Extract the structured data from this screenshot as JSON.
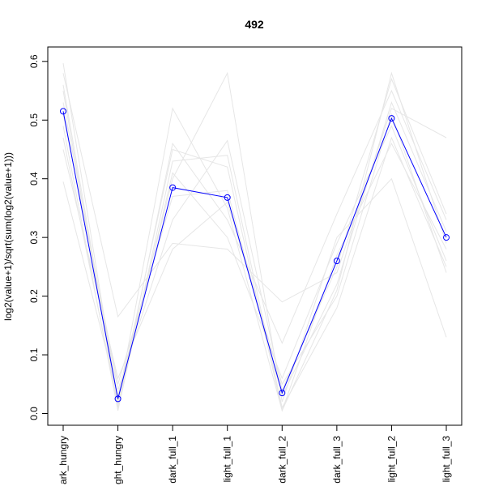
{
  "chart_data": {
    "type": "line",
    "title": "492",
    "xlabel": "",
    "ylabel": "log2(value+1)/sqrt(sum(log2(value+1)))",
    "categories": [
      "dark_hungry",
      "light_hungry",
      "dark_full_1",
      "light_full_1",
      "dark_full_2",
      "dark_full_3",
      "light_full_2",
      "light_full_3"
    ],
    "x_tick_labels_visible": [
      "ark_hungry",
      "ght_hungry",
      "dark_full_1",
      "light_full_1",
      "dark_full_2",
      "dark_full_3",
      "light_full_2",
      "light_full_3"
    ],
    "y_ticks": [
      "0.0",
      "0.1",
      "0.2",
      "0.3",
      "0.4",
      "0.5",
      "0.6"
    ],
    "ylim": [
      0.0,
      0.62
    ],
    "grid": false,
    "highlight_series": {
      "values": [
        0.515,
        0.025,
        0.385,
        0.368,
        0.035,
        0.26,
        0.503,
        0.3
      ],
      "color": "#0000ff"
    },
    "background_series": [
      {
        "values": [
          0.597,
          0.02,
          0.52,
          0.35,
          0.005,
          0.21,
          0.58,
          0.29
        ],
        "color": "#e6e6e6"
      },
      {
        "values": [
          0.58,
          0.165,
          0.29,
          0.28,
          0.19,
          0.24,
          0.52,
          0.47
        ],
        "color": "#e6e6e6"
      },
      {
        "values": [
          0.395,
          0.03,
          0.4,
          0.58,
          0.02,
          0.3,
          0.4,
          0.13
        ],
        "color": "#e6e6e6"
      },
      {
        "values": [
          0.55,
          0.01,
          0.46,
          0.33,
          0.12,
          0.34,
          0.55,
          0.33
        ],
        "color": "#e6e6e6"
      },
      {
        "values": [
          0.49,
          0.005,
          0.43,
          0.44,
          0.01,
          0.18,
          0.47,
          0.25
        ],
        "color": "#e6e6e6"
      },
      {
        "values": [
          0.53,
          0.04,
          0.33,
          0.465,
          0.04,
          0.25,
          0.57,
          0.34
        ],
        "color": "#e6e6e6"
      },
      {
        "values": [
          0.47,
          0.015,
          0.41,
          0.3,
          0.06,
          0.29,
          0.49,
          0.26
        ],
        "color": "#e6e6e6"
      },
      {
        "values": [
          0.51,
          0.05,
          0.37,
          0.38,
          0.03,
          0.22,
          0.53,
          0.31
        ],
        "color": "#e6e6e6"
      },
      {
        "values": [
          0.56,
          0.02,
          0.45,
          0.42,
          0.005,
          0.27,
          0.46,
          0.28
        ],
        "color": "#e6e6e6"
      },
      {
        "values": [
          0.45,
          0.06,
          0.28,
          0.36,
          0.05,
          0.2,
          0.51,
          0.24
        ],
        "color": "#e6e6e6"
      }
    ]
  }
}
